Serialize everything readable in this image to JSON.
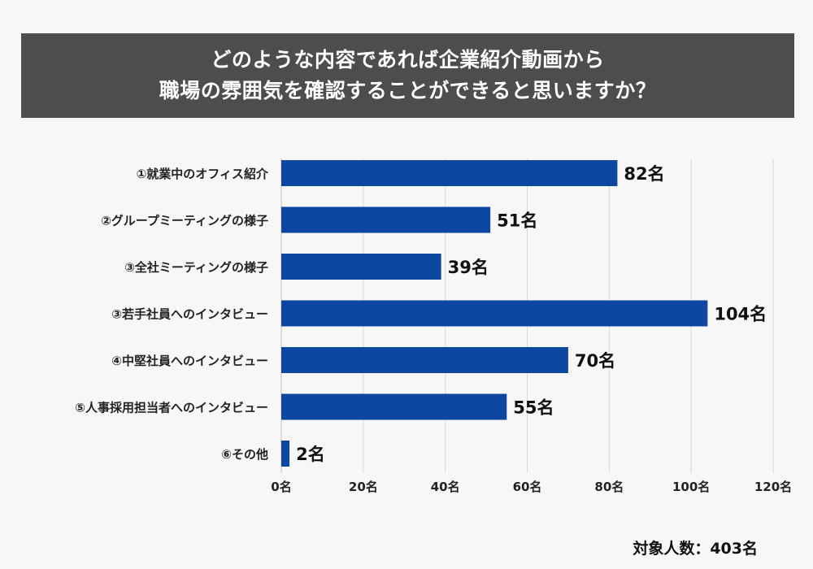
{
  "title": {
    "line1": "どのような内容であれば企業紹介動画から",
    "line2": "職場の雰囲気を確認することができると思いますか？"
  },
  "chart_data": {
    "type": "bar",
    "orientation": "horizontal",
    "categories": [
      "①就業中のオフィス紹介",
      "②グループミーティングの様子",
      "③全社ミーティングの様子",
      "③若手社員へのインタビュー",
      "④中堅社員へのインタビュー",
      "⑤人事採用担当者へのインタビュー",
      "⑥その他"
    ],
    "values": [
      82,
      51,
      39,
      104,
      70,
      55,
      2
    ],
    "value_labels": [
      "82名",
      "51名",
      "39名",
      "104名",
      "70名",
      "55名",
      "2名"
    ],
    "xlim": [
      0,
      120
    ],
    "xticks": [
      0,
      20,
      40,
      60,
      80,
      100,
      120
    ],
    "xtick_labels": [
      "0名",
      "20名",
      "40名",
      "60名",
      "80名",
      "100名",
      "120名"
    ],
    "grid": true,
    "bar_color": "#0d47a1"
  },
  "footnote": "対象人数：403名"
}
